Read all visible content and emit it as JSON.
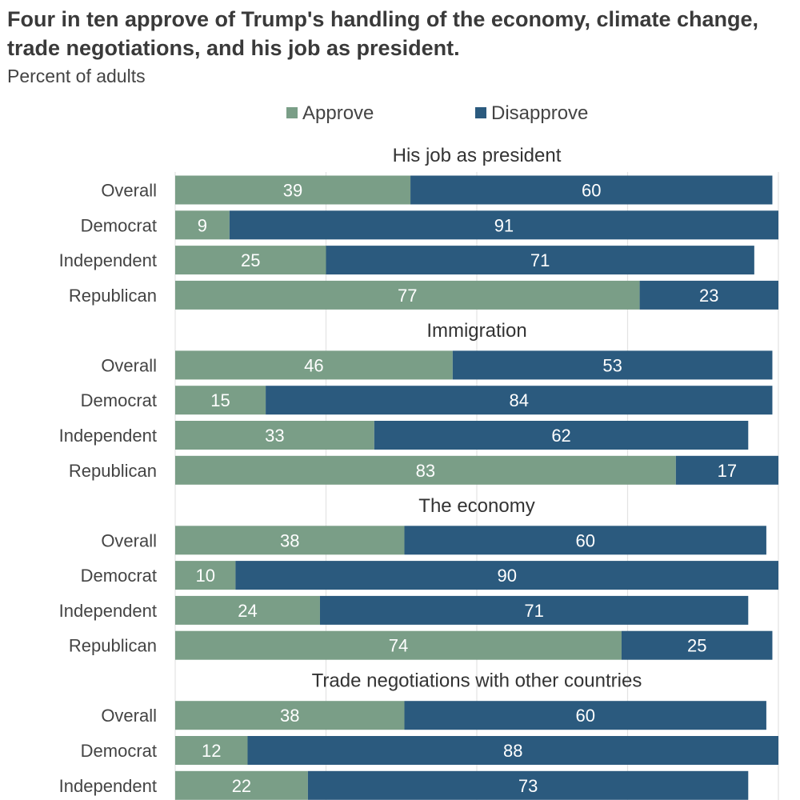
{
  "title": "Four in ten approve of Trump's handling of the economy, climate change, trade negotiations, and his job as president.",
  "subtitle": "Percent of adults",
  "colors": {
    "approve": "#7a9e87",
    "disapprove": "#2b5a7e",
    "grid": "#e3e3e3"
  },
  "chart_data": {
    "type": "bar",
    "orientation": "horizontal",
    "stacked": true,
    "title": "Four in ten approve of Trump's handling of the economy, climate change, trade negotiations, and his job as president.",
    "subtitle": "Percent of adults",
    "xlim": [
      0,
      100
    ],
    "grid": true,
    "legend": {
      "position": "top-center",
      "entries": [
        "Approve",
        "Disapprove"
      ]
    },
    "series_names": [
      "Approve",
      "Disapprove"
    ],
    "groups": [
      {
        "title": "His job as president",
        "rows": [
          {
            "label": "Overall",
            "values": [
              39,
              60
            ]
          },
          {
            "label": "Democrat",
            "values": [
              9,
              91
            ]
          },
          {
            "label": "Independent",
            "values": [
              25,
              71
            ]
          },
          {
            "label": "Republican",
            "values": [
              77,
              23
            ]
          }
        ]
      },
      {
        "title": "Immigration",
        "rows": [
          {
            "label": "Overall",
            "values": [
              46,
              53
            ]
          },
          {
            "label": "Democrat",
            "values": [
              15,
              84
            ]
          },
          {
            "label": "Independent",
            "values": [
              33,
              62
            ]
          },
          {
            "label": "Republican",
            "values": [
              83,
              17
            ]
          }
        ]
      },
      {
        "title": "The economy",
        "rows": [
          {
            "label": "Overall",
            "values": [
              38,
              60
            ]
          },
          {
            "label": "Democrat",
            "values": [
              10,
              90
            ]
          },
          {
            "label": "Independent",
            "values": [
              24,
              71
            ]
          },
          {
            "label": "Republican",
            "values": [
              74,
              25
            ]
          }
        ]
      },
      {
        "title": "Trade negotiations with other countries",
        "rows": [
          {
            "label": "Overall",
            "values": [
              38,
              60
            ]
          },
          {
            "label": "Democrat",
            "values": [
              12,
              88
            ]
          },
          {
            "label": "Independent",
            "values": [
              22,
              73
            ]
          }
        ]
      }
    ]
  }
}
